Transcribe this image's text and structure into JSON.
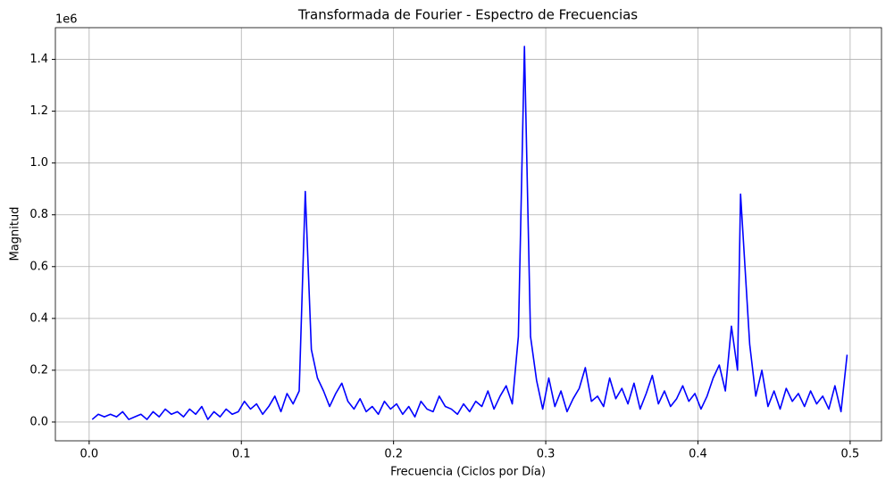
{
  "chart_data": {
    "type": "line",
    "title": "Transformada de Fourier - Espectro de Frecuencias",
    "x_label": "Frecuencia (Ciclos por Día)",
    "y_label": "Magnitud",
    "y_offset_label": "1e6",
    "x": [
      0.002,
      0.006,
      0.01,
      0.014,
      0.018,
      0.022,
      0.026,
      0.03,
      0.034,
      0.038,
      0.042,
      0.046,
      0.05,
      0.054,
      0.058,
      0.062,
      0.066,
      0.07,
      0.074,
      0.078,
      0.082,
      0.086,
      0.09,
      0.094,
      0.098,
      0.102,
      0.106,
      0.11,
      0.114,
      0.118,
      0.122,
      0.126,
      0.13,
      0.134,
      0.138,
      0.142,
      0.146,
      0.15,
      0.154,
      0.158,
      0.162,
      0.166,
      0.17,
      0.174,
      0.178,
      0.182,
      0.186,
      0.19,
      0.194,
      0.198,
      0.202,
      0.206,
      0.21,
      0.214,
      0.218,
      0.222,
      0.226,
      0.23,
      0.234,
      0.238,
      0.242,
      0.246,
      0.25,
      0.254,
      0.258,
      0.262,
      0.266,
      0.27,
      0.274,
      0.278,
      0.282,
      0.286,
      0.29,
      0.294,
      0.298,
      0.302,
      0.306,
      0.31,
      0.314,
      0.318,
      0.322,
      0.326,
      0.33,
      0.334,
      0.338,
      0.342,
      0.346,
      0.35,
      0.354,
      0.358,
      0.362,
      0.366,
      0.37,
      0.374,
      0.378,
      0.382,
      0.386,
      0.39,
      0.394,
      0.398,
      0.402,
      0.406,
      0.41,
      0.414,
      0.418,
      0.422,
      0.426,
      0.428,
      0.434,
      0.438,
      0.442,
      0.446,
      0.45,
      0.454,
      0.458,
      0.462,
      0.466,
      0.47,
      0.474,
      0.478,
      0.482,
      0.486,
      0.49,
      0.494,
      0.498
    ],
    "series": [
      {
        "name": "Magnitud",
        "color": "#0000ff",
        "values": [
          0.01,
          0.03,
          0.02,
          0.03,
          0.02,
          0.04,
          0.01,
          0.02,
          0.03,
          0.01,
          0.04,
          0.02,
          0.05,
          0.03,
          0.04,
          0.02,
          0.05,
          0.03,
          0.06,
          0.01,
          0.04,
          0.02,
          0.05,
          0.03,
          0.04,
          0.08,
          0.05,
          0.07,
          0.03,
          0.06,
          0.1,
          0.04,
          0.11,
          0.07,
          0.12,
          0.89,
          0.28,
          0.17,
          0.12,
          0.06,
          0.11,
          0.15,
          0.08,
          0.05,
          0.09,
          0.04,
          0.06,
          0.03,
          0.08,
          0.05,
          0.07,
          0.03,
          0.06,
          0.02,
          0.08,
          0.05,
          0.04,
          0.1,
          0.06,
          0.05,
          0.03,
          0.07,
          0.04,
          0.08,
          0.06,
          0.12,
          0.05,
          0.1,
          0.14,
          0.07,
          0.33,
          1.45,
          0.33,
          0.16,
          0.05,
          0.17,
          0.06,
          0.12,
          0.04,
          0.09,
          0.13,
          0.21,
          0.08,
          0.1,
          0.06,
          0.17,
          0.09,
          0.13,
          0.07,
          0.15,
          0.05,
          0.11,
          0.18,
          0.07,
          0.12,
          0.06,
          0.09,
          0.14,
          0.08,
          0.11,
          0.05,
          0.1,
          0.17,
          0.22,
          0.12,
          0.37,
          0.2,
          0.88,
          0.3,
          0.1,
          0.2,
          0.06,
          0.12,
          0.05,
          0.13,
          0.08,
          0.11,
          0.06,
          0.12,
          0.07,
          0.1,
          0.05,
          0.14,
          0.04,
          0.26
        ]
      }
    ],
    "xlim": [
      -0.0222,
      0.5206
    ],
    "ylim": [
      -0.0725,
      1.5225
    ],
    "xticks": [
      {
        "value": 0,
        "label": "0.0"
      },
      0.1,
      0.2,
      0.3,
      0.4,
      0.5
    ],
    "yticks": [
      {
        "value": 0,
        "label": "0.0"
      },
      0.2,
      0.4,
      0.6,
      0.8,
      {
        "value": 1,
        "label": "1.0"
      },
      1.2,
      1.4
    ],
    "grid": true
  }
}
